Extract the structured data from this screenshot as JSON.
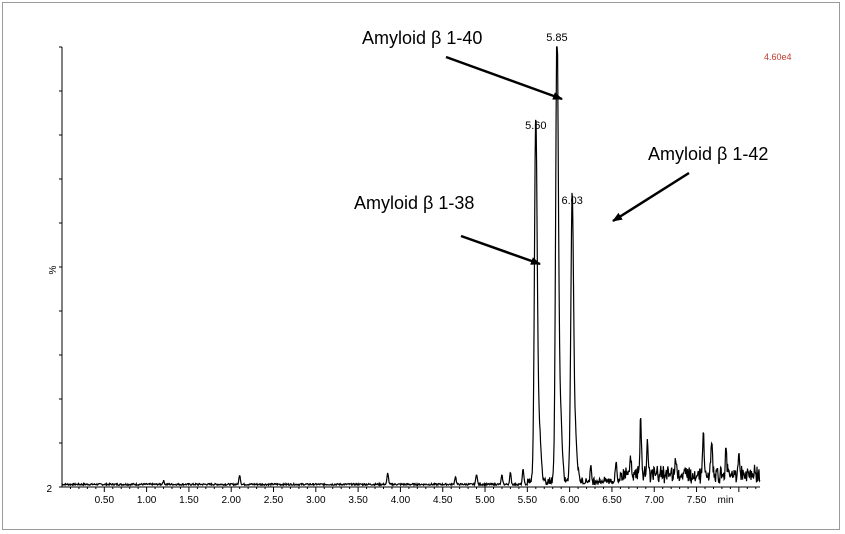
{
  "chart_data": {
    "type": "line",
    "title": "",
    "xlabel": "min",
    "ylabel": "%",
    "y_min_label": "2",
    "xlim": [
      0.0,
      8.25
    ],
    "ylim": [
      0,
      100
    ],
    "x_ticks": [
      "0.50",
      "1.00",
      "1.50",
      "2.00",
      "2.50",
      "3.00",
      "3.50",
      "4.00",
      "4.50",
      "5.00",
      "5.50",
      "6.00",
      "6.50",
      "7.00",
      "7.50"
    ],
    "x_tick_values": [
      0.5,
      1.0,
      1.5,
      2.0,
      2.5,
      3.0,
      3.5,
      4.0,
      4.5,
      5.0,
      5.5,
      6.0,
      6.5,
      7.0,
      7.5
    ],
    "x_unit_label": "min",
    "intensity_scale": "4.60e4",
    "scale_color": "#c0392b",
    "line_color": "#000000",
    "peaks": [
      {
        "x": 5.6,
        "label": "5.60",
        "height": 80
      },
      {
        "x": 5.85,
        "label": "5.85",
        "height": 100
      },
      {
        "x": 6.03,
        "label": "6.03",
        "height": 63
      }
    ],
    "annotations": [
      {
        "text": "Amyloid β 1-40",
        "target_x": 5.85
      },
      {
        "text": "Amyloid β 1-38",
        "target_x": 5.6
      },
      {
        "text": "Amyloid β 1-42",
        "target_x": 6.03
      }
    ],
    "minor_features": [
      {
        "x": 1.2,
        "height": 0.8
      },
      {
        "x": 2.1,
        "height": 2.2
      },
      {
        "x": 3.85,
        "height": 2.6
      },
      {
        "x": 4.65,
        "height": 1.8
      },
      {
        "x": 4.9,
        "height": 2.4
      },
      {
        "x": 5.2,
        "height": 2.0
      },
      {
        "x": 5.3,
        "height": 2.6
      },
      {
        "x": 5.45,
        "height": 3.5
      },
      {
        "x": 6.25,
        "height": 3.0
      },
      {
        "x": 6.55,
        "height": 4.5
      },
      {
        "x": 6.72,
        "height": 5.0
      },
      {
        "x": 6.84,
        "height": 13.5
      },
      {
        "x": 6.92,
        "height": 8.0
      },
      {
        "x": 7.25,
        "height": 4.0
      },
      {
        "x": 7.58,
        "height": 9.0
      },
      {
        "x": 7.68,
        "height": 7.0
      },
      {
        "x": 7.85,
        "height": 5.5
      },
      {
        "x": 8.0,
        "height": 4.0
      }
    ]
  }
}
